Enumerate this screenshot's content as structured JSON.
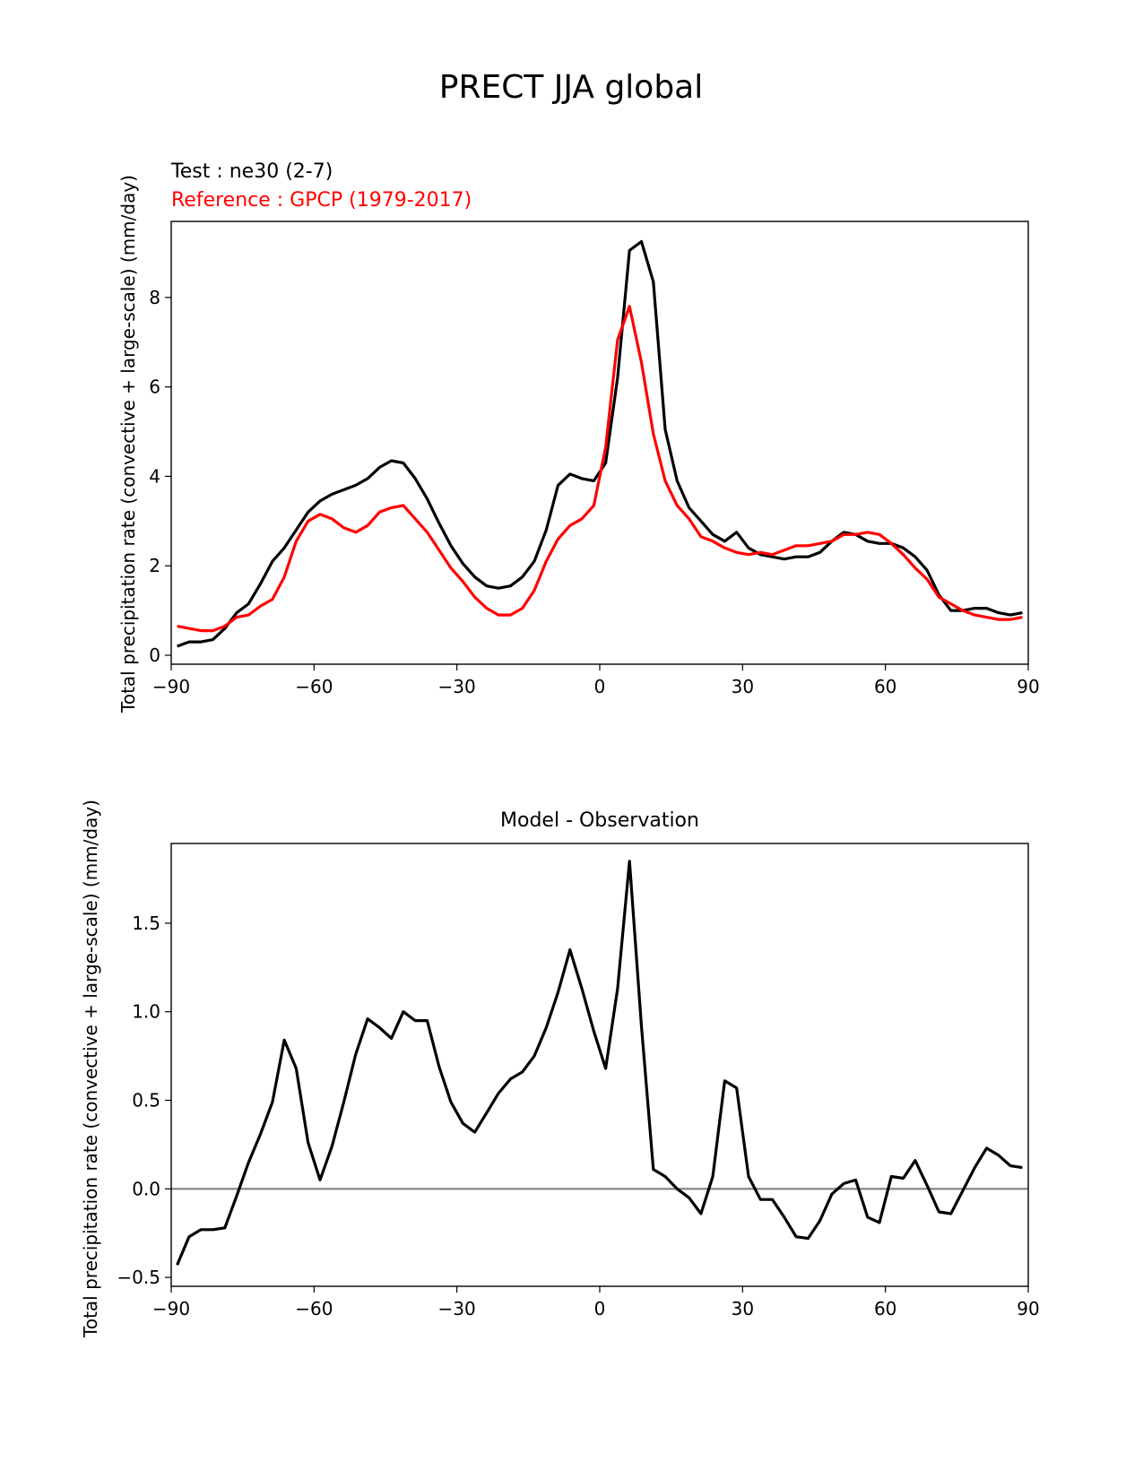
{
  "figure": {
    "title": "PRECT JJA global"
  },
  "chart_data": [
    {
      "type": "line",
      "test_label": "Test : ne30 (2-7)",
      "reference_label": "Reference : GPCP (1979-2017)",
      "ylabel": "Total precipitation rate (convective + large-scale) (mm/day)",
      "xlim": [
        -90,
        90
      ],
      "ylim": [
        -0.2,
        9.7
      ],
      "xticks": [
        -90,
        -60,
        -30,
        0,
        30,
        60,
        90
      ],
      "xtick_labels": [
        "−90",
        "−60",
        "−30",
        "0",
        "30",
        "60",
        "90"
      ],
      "yticks": [
        0,
        2,
        4,
        6,
        8
      ],
      "ytick_labels": [
        "0",
        "2",
        "4",
        "6",
        "8"
      ],
      "series": [
        {
          "name": "Test : ne30 (2-7)",
          "color": "#000000",
          "x": [
            -88.75,
            -86.25,
            -83.75,
            -81.25,
            -78.75,
            -76.25,
            -73.75,
            -71.25,
            -68.75,
            -66.25,
            -63.75,
            -61.25,
            -58.75,
            -56.25,
            -53.75,
            -51.25,
            -48.75,
            -46.25,
            -43.75,
            -41.25,
            -38.75,
            -36.25,
            -33.75,
            -31.25,
            -28.75,
            -26.25,
            -23.75,
            -21.25,
            -18.75,
            -16.25,
            -13.75,
            -11.25,
            -8.75,
            -6.25,
            -3.75,
            -1.25,
            1.25,
            3.75,
            6.25,
            8.75,
            11.25,
            13.75,
            16.25,
            18.75,
            21.25,
            23.75,
            26.25,
            28.75,
            31.25,
            33.75,
            36.25,
            38.75,
            41.25,
            43.75,
            46.25,
            48.75,
            51.25,
            53.75,
            56.25,
            58.75,
            61.25,
            63.75,
            66.25,
            68.75,
            71.25,
            73.75,
            76.25,
            78.75,
            81.25,
            83.75,
            86.25,
            88.75
          ],
          "y": [
            0.2,
            0.3,
            0.3,
            0.35,
            0.6,
            0.95,
            1.15,
            1.6,
            2.1,
            2.4,
            2.8,
            3.2,
            3.45,
            3.6,
            3.7,
            3.8,
            3.95,
            4.2,
            4.35,
            4.3,
            3.95,
            3.5,
            2.95,
            2.45,
            2.05,
            1.75,
            1.55,
            1.5,
            1.55,
            1.75,
            2.1,
            2.8,
            3.8,
            4.05,
            3.95,
            3.9,
            4.3,
            6.2,
            9.05,
            9.25,
            8.35,
            5.05,
            3.9,
            3.3,
            3.0,
            2.7,
            2.55,
            2.75,
            2.4,
            2.25,
            2.2,
            2.15,
            2.2,
            2.2,
            2.3,
            2.55,
            2.75,
            2.7,
            2.55,
            2.5,
            2.5,
            2.4,
            2.2,
            1.9,
            1.35,
            1.0,
            1.0,
            1.05,
            1.05,
            0.95,
            0.9,
            0.95
          ]
        },
        {
          "name": "Reference : GPCP (1979-2017)",
          "color": "#ff0000",
          "x": [
            -88.75,
            -86.25,
            -83.75,
            -81.25,
            -78.75,
            -76.25,
            -73.75,
            -71.25,
            -68.75,
            -66.25,
            -63.75,
            -61.25,
            -58.75,
            -56.25,
            -53.75,
            -51.25,
            -48.75,
            -46.25,
            -43.75,
            -41.25,
            -38.75,
            -36.25,
            -33.75,
            -31.25,
            -28.75,
            -26.25,
            -23.75,
            -21.25,
            -18.75,
            -16.25,
            -13.75,
            -11.25,
            -8.75,
            -6.25,
            -3.75,
            -1.25,
            1.25,
            3.75,
            6.25,
            8.75,
            11.25,
            13.75,
            16.25,
            18.75,
            21.25,
            23.75,
            26.25,
            28.75,
            31.25,
            33.75,
            36.25,
            38.75,
            41.25,
            43.75,
            46.25,
            48.75,
            51.25,
            53.75,
            56.25,
            58.75,
            61.25,
            63.75,
            66.25,
            68.75,
            71.25,
            73.75,
            76.25,
            78.75,
            81.25,
            83.75,
            86.25,
            88.75
          ],
          "y": [
            0.65,
            0.6,
            0.55,
            0.55,
            0.65,
            0.85,
            0.9,
            1.1,
            1.25,
            1.75,
            2.55,
            3.0,
            3.15,
            3.05,
            2.85,
            2.75,
            2.9,
            3.2,
            3.3,
            3.35,
            3.05,
            2.75,
            2.35,
            1.95,
            1.65,
            1.3,
            1.05,
            0.9,
            0.9,
            1.05,
            1.45,
            2.1,
            2.6,
            2.9,
            3.05,
            3.35,
            4.65,
            7.05,
            7.8,
            6.55,
            4.95,
            3.9,
            3.35,
            3.05,
            2.65,
            2.55,
            2.4,
            2.3,
            2.25,
            2.3,
            2.25,
            2.35,
            2.45,
            2.45,
            2.5,
            2.55,
            2.7,
            2.7,
            2.75,
            2.7,
            2.5,
            2.25,
            1.95,
            1.7,
            1.3,
            1.15,
            1.0,
            0.9,
            0.85,
            0.8,
            0.8,
            0.85
          ]
        }
      ]
    },
    {
      "type": "line",
      "title": "Model - Observation",
      "ylabel": "Total precipitation rate (convective + large-scale) (mm/day)",
      "xlim": [
        -90,
        90
      ],
      "ylim": [
        -0.55,
        1.95
      ],
      "xticks": [
        -90,
        -60,
        -30,
        0,
        30,
        60,
        90
      ],
      "xtick_labels": [
        "−90",
        "−60",
        "−30",
        "0",
        "30",
        "60",
        "90"
      ],
      "yticks": [
        -0.5,
        0.0,
        0.5,
        1.0,
        1.5
      ],
      "ytick_labels": [
        "−0.5",
        "0.0",
        "0.5",
        "1.0",
        "1.5"
      ],
      "zero_line_color": "#808080",
      "series": [
        {
          "color": "#000000",
          "x": [
            -88.75,
            -86.25,
            -83.75,
            -81.25,
            -78.75,
            -76.25,
            -73.75,
            -71.25,
            -68.75,
            -66.25,
            -63.75,
            -61.25,
            -58.75,
            -56.25,
            -53.75,
            -51.25,
            -48.75,
            -46.25,
            -43.75,
            -41.25,
            -38.75,
            -36.25,
            -33.75,
            -31.25,
            -28.75,
            -26.25,
            -23.75,
            -21.25,
            -18.75,
            -16.25,
            -13.75,
            -11.25,
            -8.75,
            -6.25,
            -3.75,
            -1.25,
            1.25,
            3.75,
            6.25,
            8.75,
            11.25,
            13.75,
            16.25,
            18.75,
            21.25,
            23.75,
            26.25,
            28.75,
            31.25,
            33.75,
            36.25,
            38.75,
            41.25,
            43.75,
            46.25,
            48.75,
            51.25,
            53.75,
            56.25,
            58.75,
            61.25,
            63.75,
            66.25,
            68.75,
            71.25,
            73.75,
            76.25,
            78.75,
            81.25,
            83.75,
            86.25,
            88.75
          ],
          "y": [
            -0.43,
            -0.27,
            -0.23,
            -0.23,
            -0.22,
            -0.04,
            0.15,
            0.31,
            0.49,
            0.84,
            0.68,
            0.26,
            0.05,
            0.24,
            0.49,
            0.76,
            0.96,
            0.91,
            0.85,
            1.0,
            0.95,
            0.95,
            0.69,
            0.49,
            0.37,
            0.32,
            0.43,
            0.54,
            0.62,
            0.66,
            0.75,
            0.91,
            1.11,
            1.35,
            1.13,
            0.89,
            0.68,
            1.13,
            1.85,
            0.92,
            0.11,
            0.07,
            0.0,
            -0.05,
            -0.14,
            0.07,
            0.61,
            0.57,
            0.07,
            -0.06,
            -0.06,
            -0.16,
            -0.27,
            -0.28,
            -0.18,
            -0.03,
            0.03,
            0.05,
            -0.16,
            -0.19,
            0.07,
            0.06,
            0.16,
            0.02,
            -0.13,
            -0.14,
            -0.01,
            0.12,
            0.23,
            0.19,
            0.13,
            0.12
          ]
        }
      ]
    }
  ]
}
